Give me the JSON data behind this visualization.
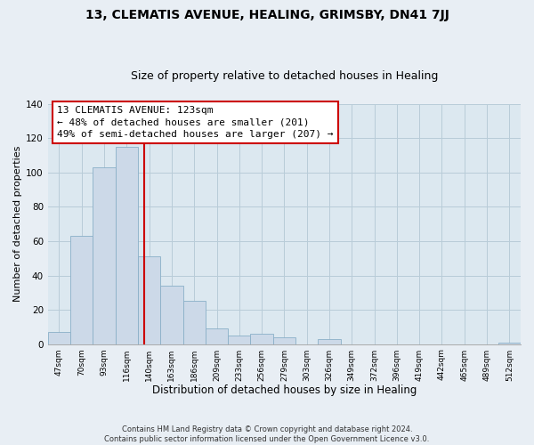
{
  "title": "13, CLEMATIS AVENUE, HEALING, GRIMSBY, DN41 7JJ",
  "subtitle": "Size of property relative to detached houses in Healing",
  "xlabel": "Distribution of detached houses by size in Healing",
  "ylabel": "Number of detached properties",
  "bar_labels": [
    "47sqm",
    "70sqm",
    "93sqm",
    "116sqm",
    "140sqm",
    "163sqm",
    "186sqm",
    "209sqm",
    "233sqm",
    "256sqm",
    "279sqm",
    "303sqm",
    "326sqm",
    "349sqm",
    "372sqm",
    "396sqm",
    "419sqm",
    "442sqm",
    "465sqm",
    "489sqm",
    "512sqm"
  ],
  "bar_values": [
    7,
    63,
    103,
    115,
    51,
    34,
    25,
    9,
    5,
    6,
    4,
    0,
    3,
    0,
    0,
    0,
    0,
    0,
    0,
    0,
    1
  ],
  "bar_color": "#ccd9e8",
  "bar_edge_color": "#8aafc8",
  "bar_width": 1.0,
  "ylim": [
    0,
    140
  ],
  "yticks": [
    0,
    20,
    40,
    60,
    80,
    100,
    120,
    140
  ],
  "vline_color": "#cc0000",
  "annotation_text": "13 CLEMATIS AVENUE: 123sqm\n← 48% of detached houses are smaller (201)\n49% of semi-detached houses are larger (207) →",
  "annotation_fontsize": 8,
  "footer_line1": "Contains HM Land Registry data © Crown copyright and database right 2024.",
  "footer_line2": "Contains public sector information licensed under the Open Government Licence v3.0.",
  "bg_color": "#e8eef4",
  "plot_bg_color": "#dce8f0",
  "grid_color": "#b8ccd8",
  "title_fontsize": 10,
  "subtitle_fontsize": 9,
  "xlabel_fontsize": 8.5,
  "ylabel_fontsize": 8
}
